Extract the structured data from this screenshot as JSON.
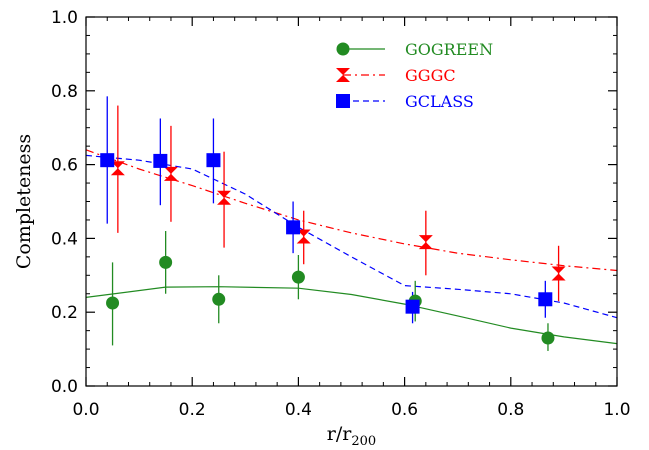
{
  "chart_data": {
    "type": "scatter",
    "xlabel": "r/r",
    "xlabel_sub": "200",
    "ylabel": "Completeness",
    "xlim": [
      0.0,
      1.0
    ],
    "ylim": [
      0.0,
      1.0
    ],
    "x_ticks": [
      "0.0",
      "0.2",
      "0.4",
      "0.6",
      "0.8",
      "1.0"
    ],
    "y_ticks": [
      "0.0",
      "0.2",
      "0.4",
      "0.6",
      "0.8",
      "1.0"
    ],
    "x_tick_values": [
      0.0,
      0.2,
      0.4,
      0.6,
      0.8,
      1.0
    ],
    "y_tick_values": [
      0.0,
      0.2,
      0.4,
      0.6,
      0.8,
      1.0
    ],
    "legend_position": "top-right",
    "grid": false,
    "series": [
      {
        "name": "GOGREEN",
        "color": "#228b22",
        "marker": "circle",
        "line_style": "solid",
        "points": [
          {
            "x": 0.05,
            "y": 0.225,
            "lo": 0.11,
            "hi": 0.335
          },
          {
            "x": 0.15,
            "y": 0.335,
            "lo": 0.25,
            "hi": 0.42
          },
          {
            "x": 0.25,
            "y": 0.235,
            "lo": 0.17,
            "hi": 0.3
          },
          {
            "x": 0.4,
            "y": 0.295,
            "lo": 0.235,
            "hi": 0.355
          },
          {
            "x": 0.62,
            "y": 0.23,
            "lo": 0.175,
            "hi": 0.285
          },
          {
            "x": 0.87,
            "y": 0.13,
            "lo": 0.095,
            "hi": 0.17
          }
        ],
        "curve": [
          [
            0.0,
            0.24
          ],
          [
            0.15,
            0.268
          ],
          [
            0.25,
            0.269
          ],
          [
            0.4,
            0.265
          ],
          [
            0.5,
            0.248
          ],
          [
            0.6,
            0.222
          ],
          [
            0.7,
            0.19
          ],
          [
            0.8,
            0.157
          ],
          [
            0.9,
            0.133
          ],
          [
            1.0,
            0.115
          ]
        ]
      },
      {
        "name": "GGGC",
        "color": "#ff0000",
        "marker": "hourglass",
        "line_style": "dash-dot",
        "points": [
          {
            "x": 0.06,
            "y": 0.59,
            "lo": 0.415,
            "hi": 0.76
          },
          {
            "x": 0.16,
            "y": 0.575,
            "lo": 0.445,
            "hi": 0.705
          },
          {
            "x": 0.26,
            "y": 0.51,
            "lo": 0.375,
            "hi": 0.635
          },
          {
            "x": 0.41,
            "y": 0.405,
            "lo": 0.33,
            "hi": 0.475
          },
          {
            "x": 0.64,
            "y": 0.39,
            "lo": 0.3,
            "hi": 0.475
          },
          {
            "x": 0.89,
            "y": 0.305,
            "lo": 0.23,
            "hi": 0.38
          }
        ],
        "curve": [
          [
            0.0,
            0.64
          ],
          [
            0.1,
            0.588
          ],
          [
            0.2,
            0.543
          ],
          [
            0.3,
            0.495
          ],
          [
            0.4,
            0.45
          ],
          [
            0.5,
            0.415
          ],
          [
            0.6,
            0.385
          ],
          [
            0.7,
            0.36
          ],
          [
            0.8,
            0.342
          ],
          [
            0.9,
            0.326
          ],
          [
            1.0,
            0.313
          ]
        ]
      },
      {
        "name": "GCLASS",
        "color": "#0000ff",
        "marker": "square",
        "line_style": "dashed",
        "points": [
          {
            "x": 0.04,
            "y": 0.612,
            "lo": 0.44,
            "hi": 0.785
          },
          {
            "x": 0.14,
            "y": 0.61,
            "lo": 0.49,
            "hi": 0.725
          },
          {
            "x": 0.24,
            "y": 0.612,
            "lo": 0.495,
            "hi": 0.725
          },
          {
            "x": 0.39,
            "y": 0.43,
            "lo": 0.36,
            "hi": 0.5
          },
          {
            "x": 0.615,
            "y": 0.215,
            "lo": 0.17,
            "hi": 0.255
          },
          {
            "x": 0.865,
            "y": 0.235,
            "lo": 0.185,
            "hi": 0.285
          }
        ],
        "curve": [
          [
            0.0,
            0.625
          ],
          [
            0.1,
            0.612
          ],
          [
            0.2,
            0.588
          ],
          [
            0.3,
            0.52
          ],
          [
            0.4,
            0.43
          ],
          [
            0.5,
            0.35
          ],
          [
            0.6,
            0.272
          ],
          [
            0.7,
            0.262
          ],
          [
            0.8,
            0.25
          ],
          [
            0.9,
            0.225
          ],
          [
            1.0,
            0.185
          ]
        ]
      }
    ]
  }
}
